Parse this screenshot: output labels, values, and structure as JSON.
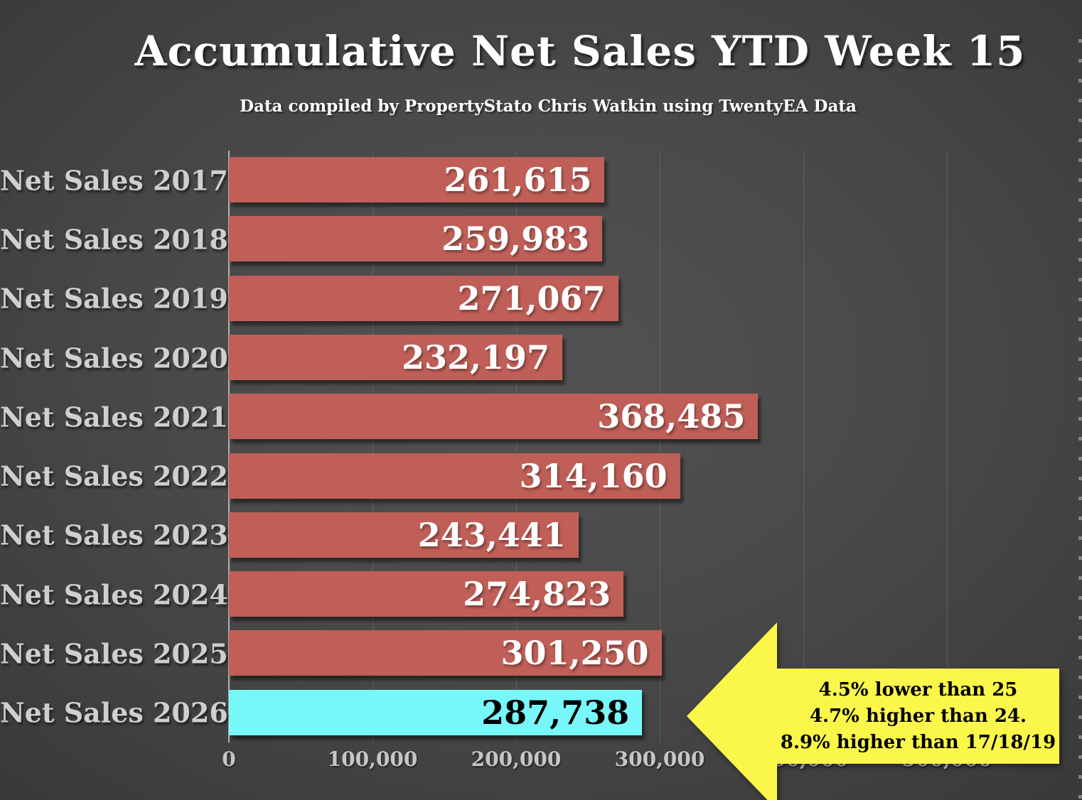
{
  "title": "Accumulative Net Sales YTD Week 15",
  "subtitle": "Data compiled by PropertyStato Chris Watkin using TwentyEA Data",
  "chart_data": {
    "type": "bar",
    "orientation": "horizontal",
    "categories": [
      "Net Sales 2017",
      "Net Sales 2018",
      "Net Sales 2019",
      "Net Sales 2020",
      "Net Sales 2021",
      "Net Sales 2022",
      "Net Sales 2023",
      "Net Sales 2024",
      "Net Sales 2025",
      "Net Sales 2026"
    ],
    "values": [
      261615,
      259983,
      271067,
      232197,
      368485,
      314160,
      243441,
      274823,
      301250,
      287738
    ],
    "value_labels": [
      "261,615",
      "259,983",
      "271,067",
      "232,197",
      "368,485",
      "314,160",
      "243,441",
      "274,823",
      "301,250",
      "287,738"
    ],
    "highlight_index": 9,
    "x_tick_values": [
      0,
      100000,
      200000,
      300000,
      400000,
      500000
    ],
    "x_tick_labels": [
      "0",
      "100,000",
      "200,000",
      "300,000",
      "400,000",
      "500,000"
    ],
    "x_axis_min": 0,
    "x_axis_visible_max": 593000,
    "grid": true,
    "legend": "none",
    "colors": {
      "bar": "#bf5f58",
      "highlight_bar": "#78f7fb",
      "value_label": "#ffffff",
      "highlight_value_label": "#000000",
      "category_label": "#cfcfcf",
      "tick_label": "#c6c6c6"
    }
  },
  "annotation": {
    "shape": "left-arrow",
    "color": "#fbf74a",
    "lines": [
      "4.5% lower than 25",
      "4.7% higher than 24.",
      "8.9% higher than 17/18/19"
    ]
  }
}
